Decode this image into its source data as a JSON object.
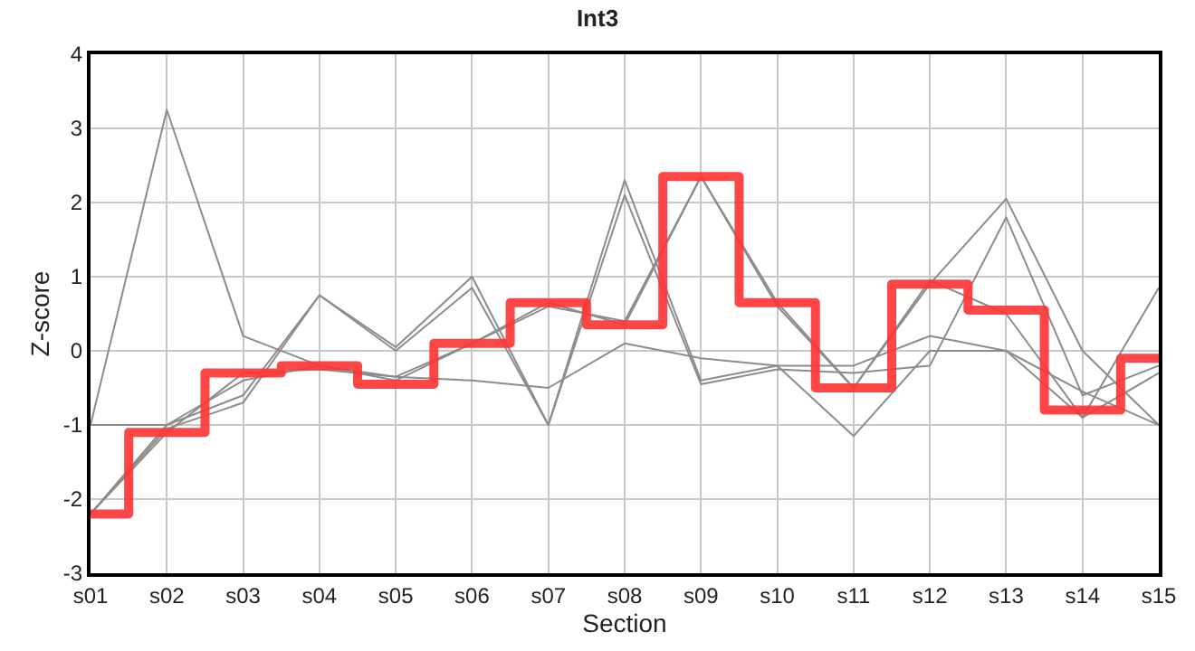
{
  "chart_data": {
    "type": "line",
    "title": "Int3",
    "xlabel": "Section",
    "ylabel": "Z-score",
    "categories": [
      "s01",
      "s02",
      "s03",
      "s04",
      "s05",
      "s06",
      "s07",
      "s08",
      "s09",
      "s10",
      "s11",
      "s12",
      "s13",
      "s14",
      "s15"
    ],
    "ylim": [
      -3,
      4
    ],
    "yticks": [
      -3,
      -2,
      -1,
      0,
      1,
      2,
      3,
      4
    ],
    "grid": true,
    "marker": "none",
    "series": [
      {
        "color": "#8c8c8c",
        "values": [
          -1.0,
          3.25,
          0.2,
          -0.2,
          -0.35,
          -0.4,
          -0.5,
          0.1,
          -0.1,
          -0.2,
          -0.2,
          0.2,
          0.0,
          -0.55,
          -1.0
        ]
      },
      {
        "color": "#8c8c8c",
        "values": [
          -2.2,
          -1.0,
          -0.6,
          0.75,
          0.05,
          1.0,
          -1.0,
          2.3,
          -0.4,
          -0.2,
          -1.15,
          0.0,
          0.0,
          -0.9,
          0.85
        ]
      },
      {
        "color": "#8c8c8c",
        "values": [
          -2.2,
          -1.05,
          -0.7,
          0.75,
          0.0,
          0.85,
          -1.0,
          2.1,
          -0.45,
          -0.25,
          -0.3,
          -0.2,
          1.8,
          -0.6,
          -0.2
        ]
      },
      {
        "color": "#8c8c8c",
        "values": [
          -1.0,
          -1.0,
          -0.4,
          -0.2,
          -0.4,
          0.1,
          0.65,
          0.35,
          2.35,
          0.65,
          -0.5,
          0.95,
          0.5,
          -0.9,
          -0.3
        ]
      },
      {
        "color": "#8c8c8c",
        "values": [
          -2.2,
          -1.1,
          -0.3,
          -0.25,
          -0.35,
          0.1,
          0.6,
          0.4,
          2.35,
          0.6,
          -0.5,
          0.9,
          2.05,
          0.0,
          -1.0
        ]
      },
      {
        "type": "step",
        "color": "#ff3333",
        "values": [
          -2.2,
          -1.1,
          -0.3,
          -0.2,
          -0.45,
          0.1,
          0.65,
          0.35,
          2.35,
          0.65,
          -0.5,
          0.9,
          0.55,
          -0.8,
          -0.1
        ]
      }
    ]
  }
}
